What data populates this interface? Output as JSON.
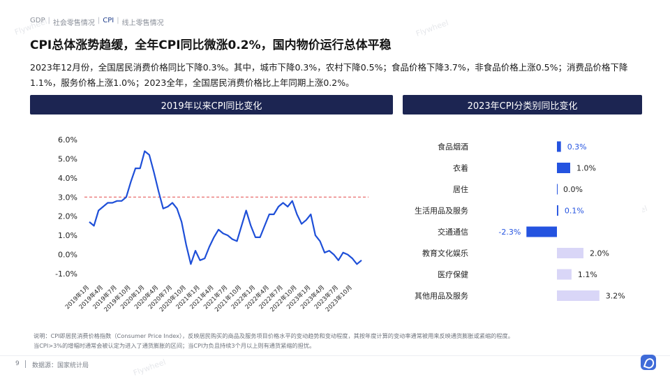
{
  "nav": {
    "items": [
      "GDP",
      "社会零售情况",
      "CPI",
      "线上零售情况"
    ],
    "active_index": 2
  },
  "title": "CPI总体涨势趋缓，全年CPI同比微涨0.2%，国内物价运行总体平稳",
  "desc": "2023年12月份，全国居民消费价格同比下降0.3%。其中，城市下降0.3%，农村下降0.5%；食品价格下降3.7%，非食品价格上涨0.5%；消费品价格下降1.1%，服务价格上涨1.0%；2023全年，全国居民消费价格比上年同期上涨0.2%。",
  "note_line1": "说明：CPI即居民消费价格指数（Consumer Price Index），反映居民购买的商品及服务项目价格水平的变动趋势和变动程度，其按年度计算的变动率通常被用来反映通货膨胀或紧缩的程度。",
  "note_line2": "当CPI>3%的增幅时通常会被认定为进入了通货膨胀的区间；当CPI为负且持续3个月以上则有通货紧缩的担忧。",
  "page_number": "9",
  "source": "数据源：国家统计局",
  "watermark": "Flywheel",
  "colors": {
    "line": "#1e4fd8",
    "threshold": "#e24848",
    "bar_pos": "#d9d6f7",
    "bar_neg": "#2453e0",
    "header": "#1c2552"
  },
  "chart_data": [
    {
      "type": "line",
      "title": "2019年以来CPI同比变化",
      "ytick_labels": [
        "6.0%",
        "5.0%",
        "4.0%",
        "3.0%",
        "2.0%",
        "1.0%",
        "0.0%",
        "-1.0%"
      ],
      "ylim": [
        -1.0,
        6.0
      ],
      "threshold": 3.0,
      "xtick_labels": [
        "2019年1月",
        "2019年4月",
        "2019年7月",
        "2019年10月",
        "2020年1月",
        "2020年4月",
        "2020年7月",
        "2020年10月",
        "2021年1月",
        "2021年4月",
        "2021年7月",
        "2021年10月",
        "2022年1月",
        "2022年4月",
        "2022年7月",
        "2022年10月",
        "2023年1月",
        "2023年4月",
        "2023年7月",
        "2023年10月"
      ],
      "series": [
        {
          "values": [
            1.7,
            1.5,
            2.3,
            2.5,
            2.7,
            2.7,
            2.8,
            2.8,
            3.0,
            3.8,
            4.5,
            4.5,
            5.4,
            5.2,
            4.3,
            3.3,
            2.4,
            2.5,
            2.7,
            2.4,
            1.7,
            0.5,
            -0.5,
            0.2,
            -0.3,
            -0.2,
            0.4,
            0.9,
            1.3,
            1.1,
            1.0,
            0.8,
            0.7,
            1.5,
            2.3,
            1.5,
            0.9,
            0.9,
            1.5,
            2.1,
            2.1,
            2.5,
            2.7,
            2.5,
            2.8,
            2.1,
            1.6,
            1.8,
            2.1,
            1.0,
            0.7,
            0.1,
            0.2,
            0.0,
            -0.3,
            0.1,
            0.0,
            -0.2,
            -0.5,
            -0.3
          ]
        }
      ]
    },
    {
      "type": "bar",
      "title": "2023年CPI分类别同比变化",
      "categories": [
        "食品烟酒",
        "衣着",
        "居住",
        "生活用品及服务",
        "交通通信",
        "教育文化娱乐",
        "医疗保健",
        "其他用品及服务"
      ],
      "values": [
        0.3,
        1.0,
        0.0,
        0.1,
        -2.3,
        2.0,
        1.1,
        3.2
      ],
      "labels": [
        "0.3%",
        "1.0%",
        "0.0%",
        "0.1%",
        "-2.3%",
        "2.0%",
        "1.1%",
        "3.2%"
      ]
    }
  ]
}
